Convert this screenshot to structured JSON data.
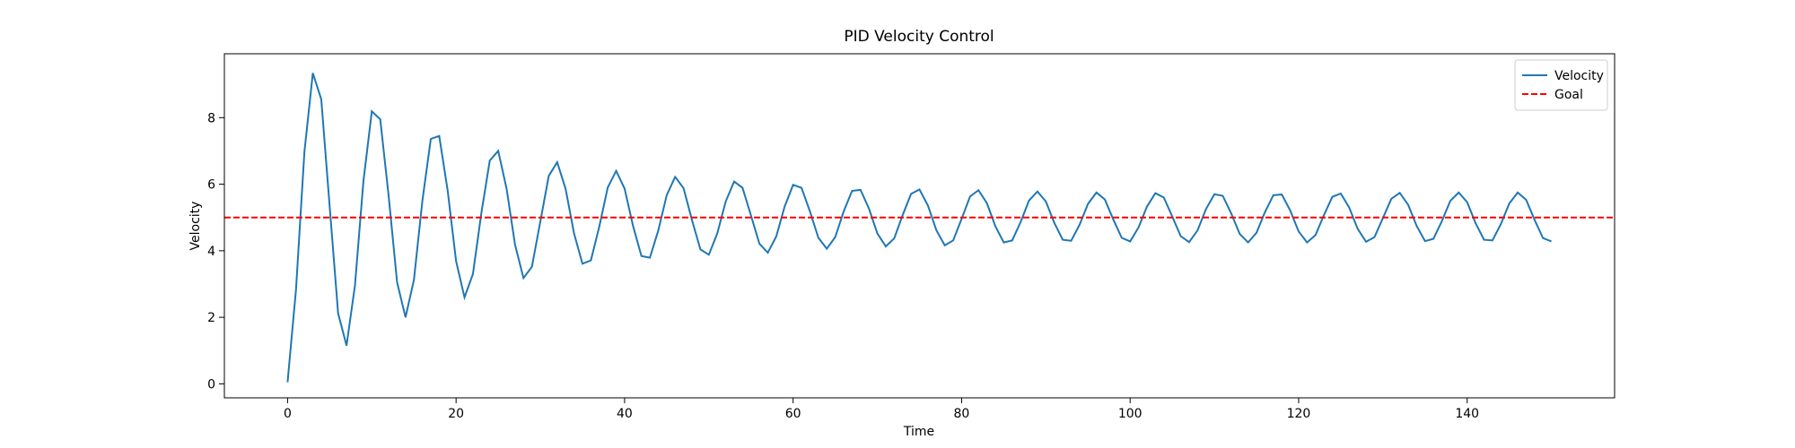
{
  "chart_data": {
    "type": "line",
    "title": "PID Velocity Control",
    "x_label": "Time",
    "y_label": "Velocity",
    "x": [
      0,
      1,
      2,
      3,
      4,
      5,
      6,
      7,
      8,
      9,
      10,
      11,
      12,
      13,
      14,
      15,
      16,
      17,
      18,
      19,
      20,
      21,
      22,
      23,
      24,
      25,
      26,
      27,
      28,
      29,
      30,
      31,
      32,
      33,
      34,
      35,
      36,
      37,
      38,
      39,
      40,
      41,
      42,
      43,
      44,
      45,
      46,
      47,
      48,
      49,
      50,
      51,
      52,
      53,
      54,
      55,
      56,
      57,
      58,
      59,
      60,
      61,
      62,
      63,
      64,
      65,
      66,
      67,
      68,
      69,
      70,
      71,
      72,
      73,
      74,
      75,
      76,
      77,
      78,
      79,
      80,
      81,
      82,
      83,
      84,
      85,
      86,
      87,
      88,
      89,
      90,
      91,
      92,
      93,
      94,
      95,
      96,
      97,
      98,
      99,
      100,
      101,
      102,
      103,
      104,
      105,
      106,
      107,
      108,
      109,
      110,
      111,
      112,
      113,
      114,
      115,
      116,
      117,
      118,
      119,
      120,
      121,
      122,
      123,
      124,
      125,
      126,
      127,
      128,
      129,
      130,
      131,
      132,
      133,
      134,
      135,
      136,
      137,
      138,
      139,
      140,
      141,
      142,
      143,
      144,
      145,
      146,
      147,
      148,
      149,
      150
    ],
    "series": [
      {
        "name": "Velocity",
        "color": "#1f77b4",
        "values": [
          0.05,
          2.83,
          6.97,
          9.34,
          8.55,
          5.32,
          2.12,
          1.15,
          2.96,
          6.08,
          8.19,
          7.95,
          5.64,
          3.05,
          2.0,
          3.13,
          5.5,
          7.36,
          7.45,
          5.81,
          3.69,
          2.6,
          3.3,
          5.13,
          6.71,
          7.0,
          5.86,
          4.18,
          3.18,
          3.52,
          4.88,
          6.25,
          6.66,
          5.86,
          4.52,
          3.61,
          3.71,
          4.73,
          5.9,
          6.4,
          5.87,
          4.75,
          3.84,
          3.79,
          4.61,
          5.67,
          6.22,
          5.88,
          4.92,
          4.04,
          3.88,
          4.52,
          5.48,
          6.08,
          5.89,
          5.06,
          4.21,
          3.94,
          4.43,
          5.33,
          5.98,
          5.89,
          5.18,
          4.39,
          4.06,
          4.41,
          5.18,
          5.8,
          5.83,
          5.27,
          4.52,
          4.13,
          4.37,
          5.07,
          5.71,
          5.84,
          5.36,
          4.62,
          4.16,
          4.31,
          4.96,
          5.63,
          5.82,
          5.43,
          4.74,
          4.25,
          4.31,
          4.86,
          5.51,
          5.78,
          5.48,
          4.84,
          4.33,
          4.3,
          4.78,
          5.41,
          5.75,
          5.54,
          4.94,
          4.39,
          4.28,
          4.7,
          5.33,
          5.73,
          5.6,
          5.03,
          4.44,
          4.26,
          4.61,
          5.25,
          5.7,
          5.65,
          5.12,
          4.51,
          4.25,
          4.54,
          5.16,
          5.67,
          5.69,
          5.21,
          4.58,
          4.25,
          4.47,
          5.07,
          5.62,
          5.72,
          5.3,
          4.66,
          4.27,
          4.41,
          4.98,
          5.56,
          5.74,
          5.38,
          4.75,
          4.29,
          4.36,
          4.89,
          5.5,
          5.75,
          5.46,
          4.83,
          4.33,
          4.31,
          4.8,
          5.42,
          5.75,
          5.53,
          4.93,
          4.38,
          4.28
        ]
      }
    ],
    "hline": {
      "name": "Goal",
      "value": 5,
      "color": "#ff0000",
      "dashed": true
    },
    "xlim": [
      -7.5,
      157.5
    ],
    "ylim": [
      -0.42,
      9.92
    ],
    "xticks": [
      0,
      20,
      40,
      60,
      80,
      100,
      120,
      140
    ],
    "yticks": [
      0,
      2,
      4,
      6,
      8
    ],
    "grid": false,
    "legend": "upper right"
  }
}
